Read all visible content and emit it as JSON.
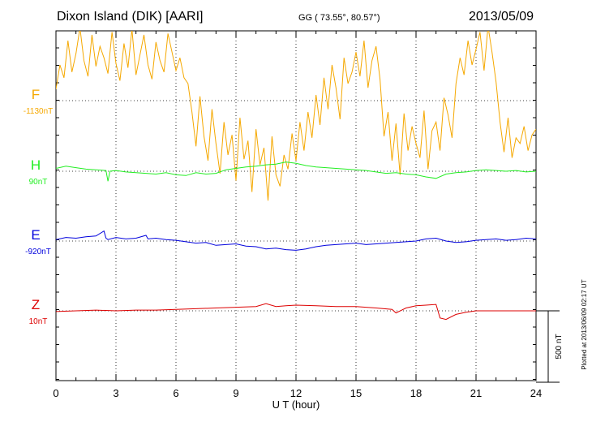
{
  "header": {
    "title": "Dixon Island (DIK)  [AARI]",
    "coords": "GG ( 73.55°,  80.57°)",
    "date": "2013/05/09"
  },
  "chart_data": {
    "type": "line",
    "title": "Dixon Island (DIK)  [AARI]",
    "xlabel": "U T (hour)",
    "xlim": [
      0,
      24
    ],
    "xticks": [
      "0",
      "3",
      "6",
      "9",
      "12",
      "15",
      "18",
      "21",
      "24"
    ],
    "scale_bar_label": "500 nT",
    "footer_note": "Plotted at 2013/06/09 02:17 UT",
    "series": [
      {
        "name": "F",
        "offset_label": "-1130nT",
        "color": "#f5a800",
        "baseline_nT": 0,
        "x": [
          0,
          0.2,
          0.4,
          0.6,
          0.8,
          1,
          1.2,
          1.4,
          1.6,
          1.8,
          2,
          2.2,
          2.4,
          2.6,
          2.8,
          3,
          3.2,
          3.4,
          3.6,
          3.8,
          4,
          4.2,
          4.4,
          4.6,
          4.8,
          5,
          5.2,
          5.4,
          5.6,
          5.8,
          6,
          6.2,
          6.4,
          6.6,
          6.8,
          7,
          7.2,
          7.4,
          7.6,
          7.8,
          8,
          8.2,
          8.4,
          8.6,
          8.8,
          9,
          9.2,
          9.4,
          9.6,
          9.8,
          10,
          10.2,
          10.4,
          10.6,
          10.8,
          11,
          11.2,
          11.4,
          11.6,
          11.8,
          12,
          12.2,
          12.4,
          12.6,
          12.8,
          13,
          13.2,
          13.4,
          13.6,
          13.8,
          14,
          14.2,
          14.4,
          14.6,
          14.8,
          15,
          15.2,
          15.4,
          15.6,
          15.8,
          16,
          16.2,
          16.4,
          16.6,
          16.8,
          17,
          17.2,
          17.4,
          17.6,
          17.8,
          18,
          18.2,
          18.4,
          18.6,
          18.8,
          19,
          19.2,
          19.4,
          19.6,
          19.8,
          20,
          20.2,
          20.4,
          20.6,
          20.8,
          21,
          21.2,
          21.4,
          21.6,
          21.8,
          22,
          22.2,
          22.4,
          22.6,
          22.8,
          23,
          23.2,
          23.4,
          23.6,
          23.8,
          24
        ],
        "values": [
          80,
          250,
          160,
          420,
          200,
          330,
          510,
          280,
          170,
          460,
          240,
          380,
          300,
          190,
          480,
          260,
          140,
          400,
          230,
          500,
          180,
          320,
          460,
          250,
          150,
          410,
          280,
          200,
          470,
          340,
          210,
          300,
          160,
          120,
          -80,
          -320,
          30,
          -250,
          -420,
          -60,
          -300,
          -510,
          -150,
          -380,
          -240,
          -560,
          -120,
          -410,
          -280,
          -640,
          -200,
          -450,
          -330,
          -700,
          -250,
          -520,
          -600,
          -380,
          -480,
          -230,
          -420,
          -150,
          -350,
          -80,
          -260,
          40,
          -170,
          160,
          -60,
          250,
          90,
          -130,
          300,
          120,
          200,
          340,
          170,
          420,
          90,
          280,
          380,
          150,
          -250,
          -80,
          -420,
          -160,
          -520,
          -90,
          -350,
          -180,
          -300,
          -400,
          -70,
          -480,
          -210,
          -150,
          -350,
          20,
          -100,
          -260,
          120,
          300,
          180,
          420,
          250,
          360,
          480,
          210,
          520,
          340,
          130,
          -150,
          -360,
          -120,
          -400,
          -260,
          -300,
          -180,
          -350,
          -240,
          -200
        ]
      },
      {
        "name": "H",
        "offset_label": "90nT",
        "color": "#22ee22",
        "baseline_nT": 0,
        "x": [
          0,
          0.5,
          1,
          1.5,
          2,
          2.5,
          2.6,
          2.7,
          3,
          3.5,
          4,
          4.5,
          5,
          5.5,
          6,
          6.5,
          7,
          7.5,
          8,
          8.5,
          9,
          9.5,
          10,
          10.5,
          11,
          11.5,
          12,
          12.5,
          13,
          13.5,
          14,
          14.5,
          15,
          15.5,
          16,
          16.5,
          17,
          17.5,
          18,
          18.5,
          19,
          19.5,
          20,
          20.5,
          21,
          21.5,
          22,
          22.5,
          23,
          23.5,
          24
        ],
        "values": [
          20,
          35,
          25,
          15,
          10,
          5,
          -70,
          0,
          5,
          -5,
          -10,
          -15,
          -20,
          -10,
          -25,
          -30,
          -10,
          -20,
          -15,
          10,
          20,
          30,
          35,
          45,
          50,
          65,
          55,
          40,
          30,
          25,
          20,
          15,
          10,
          5,
          -5,
          -15,
          -10,
          -20,
          -25,
          -40,
          -50,
          -20,
          -10,
          -5,
          5,
          10,
          5,
          0,
          5,
          -5,
          0
        ]
      },
      {
        "name": "E",
        "offset_label": "-920nT",
        "color": "#0000dd",
        "baseline_nT": 0,
        "x": [
          0,
          0.5,
          1,
          1.5,
          2,
          2.4,
          2.5,
          2.6,
          3,
          3.5,
          4,
          4.5,
          4.6,
          5,
          5.5,
          6,
          6.5,
          7,
          7.5,
          8,
          8.5,
          9,
          9.5,
          10,
          10.5,
          11,
          11.5,
          12,
          12.5,
          13,
          13.5,
          14,
          14.5,
          15,
          15.5,
          16,
          16.5,
          17,
          17.5,
          18,
          18.5,
          19,
          19.5,
          20,
          20.5,
          21,
          21.5,
          22,
          22.5,
          23,
          23.5,
          24
        ],
        "values": [
          10,
          25,
          20,
          30,
          35,
          70,
          20,
          10,
          25,
          15,
          20,
          40,
          15,
          20,
          10,
          5,
          -5,
          -15,
          -10,
          -30,
          -25,
          -20,
          -35,
          -40,
          -55,
          -50,
          -60,
          -65,
          -55,
          -40,
          -30,
          -25,
          -20,
          -15,
          -25,
          -20,
          -15,
          -10,
          -5,
          0,
          15,
          20,
          0,
          -10,
          -5,
          5,
          10,
          15,
          5,
          10,
          20,
          15
        ]
      },
      {
        "name": "Z",
        "offset_label": "10nT",
        "color": "#dd0000",
        "baseline_nT": 0,
        "x": [
          0,
          1,
          2,
          3,
          4,
          5,
          6,
          7,
          8,
          9,
          10,
          10.5,
          11,
          11.5,
          12,
          13,
          14,
          15,
          16,
          16.8,
          17,
          17.5,
          18,
          18.5,
          19,
          19.2,
          19.5,
          20,
          20.5,
          21,
          22,
          23,
          24
        ],
        "values": [
          -5,
          0,
          5,
          0,
          5,
          5,
          10,
          15,
          20,
          25,
          30,
          50,
          30,
          35,
          40,
          35,
          30,
          30,
          20,
          10,
          -15,
          20,
          35,
          40,
          45,
          -50,
          -60,
          -25,
          -10,
          0,
          0,
          0,
          0
        ]
      }
    ]
  }
}
